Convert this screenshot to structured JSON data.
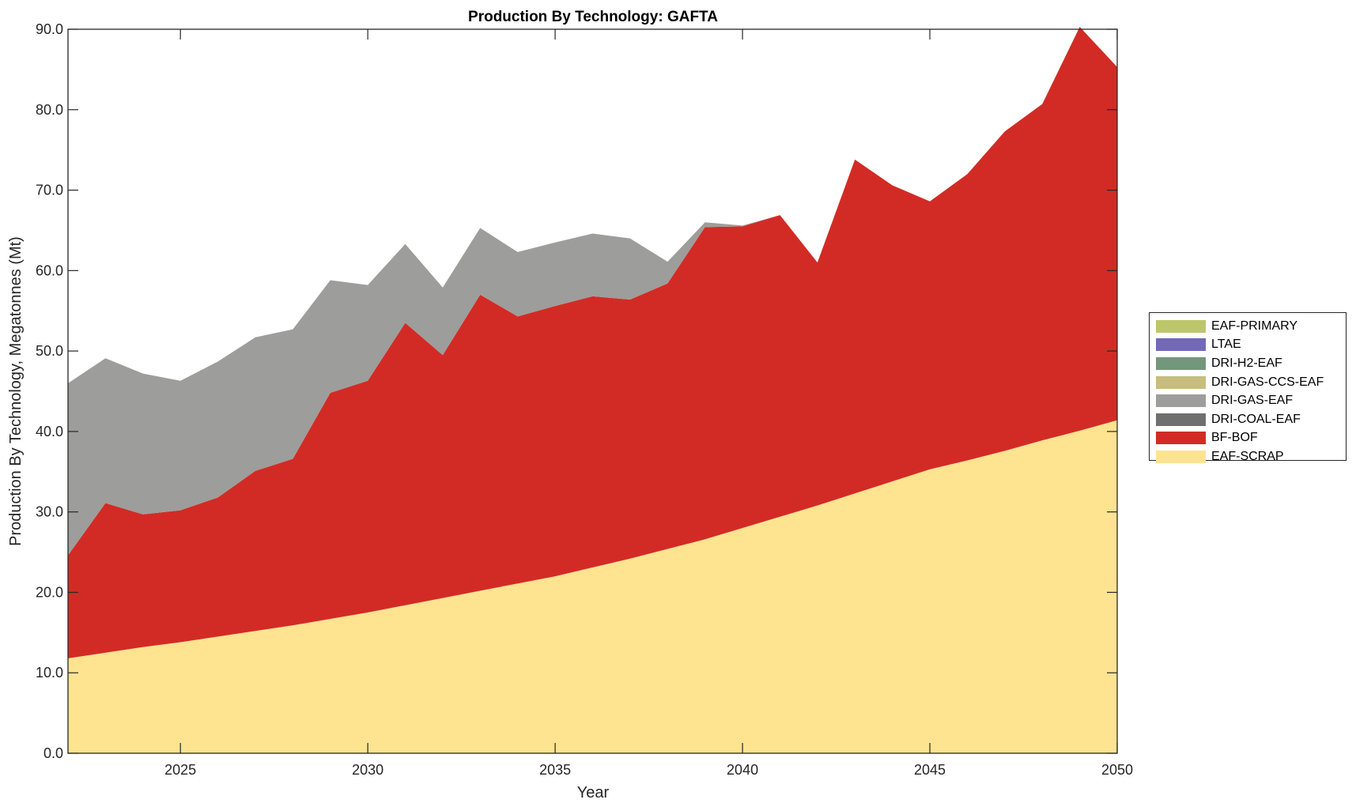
{
  "chart_data": {
    "type": "area",
    "stacked": true,
    "title": "Production By Technology: GAFTA",
    "xlabel": "Year",
    "ylabel": "Production By Technology, Megatonnes (Mt)",
    "xlim": [
      2022,
      2050
    ],
    "ylim": [
      0,
      90
    ],
    "xticks": [
      2025,
      2030,
      2035,
      2040,
      2045,
      2050
    ],
    "yticks": [
      0,
      10,
      20,
      30,
      40,
      50,
      60,
      70,
      80,
      90
    ],
    "ytick_labels": [
      "0.0",
      "10.0",
      "20.0",
      "30.0",
      "40.0",
      "50.0",
      "60.0",
      "70.0",
      "80.0",
      "90.0"
    ],
    "grid": false,
    "legend_position": "right",
    "x": [
      2022,
      2023,
      2024,
      2025,
      2026,
      2027,
      2028,
      2029,
      2030,
      2031,
      2032,
      2033,
      2034,
      2035,
      2036,
      2037,
      2038,
      2039,
      2040,
      2041,
      2042,
      2043,
      2044,
      2045,
      2046,
      2047,
      2048,
      2049,
      2050
    ],
    "series": [
      {
        "name": "EAF-SCRAP",
        "color": "#fee391",
        "values": [
          11.8,
          12.5,
          13.2,
          13.8,
          14.5,
          15.2,
          15.9,
          16.7,
          17.5,
          18.4,
          19.3,
          20.2,
          21.1,
          22.0,
          23.1,
          24.2,
          25.4,
          26.6,
          28.0,
          29.4,
          30.8,
          32.3,
          33.8,
          35.3,
          36.4,
          37.6,
          38.9,
          40.1,
          41.4
        ]
      },
      {
        "name": "BF-BOF",
        "color": "#d22b25",
        "values": [
          12.8,
          18.6,
          16.5,
          16.4,
          17.3,
          19.9,
          20.7,
          28.1,
          28.8,
          35.1,
          30.2,
          36.8,
          33.2,
          33.6,
          33.7,
          32.2,
          33.0,
          38.8,
          37.5,
          37.5,
          30.2,
          41.5,
          36.8,
          33.3,
          35.6,
          39.7,
          41.8,
          50.2,
          43.9
        ]
      },
      {
        "name": "DRI-COAL-EAF",
        "color": "#6f6f6f",
        "values": [
          0,
          0,
          0,
          0,
          0,
          0,
          0,
          0,
          0,
          0,
          0,
          0,
          0,
          0,
          0,
          0,
          0,
          0,
          0,
          0,
          0,
          0,
          0,
          0,
          0,
          0,
          0,
          0,
          0
        ]
      },
      {
        "name": "DRI-GAS-EAF",
        "color": "#9d9d9b",
        "values": [
          21.4,
          18.0,
          17.5,
          16.1,
          16.9,
          16.6,
          16.1,
          14.0,
          11.9,
          9.8,
          8.4,
          8.3,
          8.0,
          7.9,
          7.8,
          7.6,
          2.7,
          0.6,
          0.1,
          0,
          0,
          0,
          0,
          0,
          0,
          0,
          0,
          0,
          0
        ]
      },
      {
        "name": "DRI-GAS-CCS-EAF",
        "color": "#c6bd7e",
        "values": [
          0,
          0,
          0,
          0,
          0,
          0,
          0,
          0,
          0,
          0,
          0,
          0,
          0,
          0,
          0,
          0,
          0,
          0,
          0,
          0,
          0,
          0,
          0,
          0,
          0,
          0,
          0,
          0,
          0
        ]
      },
      {
        "name": "DRI-H2-EAF",
        "color": "#72977b",
        "values": [
          0,
          0,
          0,
          0,
          0,
          0,
          0,
          0,
          0,
          0,
          0,
          0,
          0,
          0,
          0,
          0,
          0,
          0,
          0,
          0,
          0,
          0,
          0,
          0,
          0,
          0,
          0,
          0,
          0
        ]
      },
      {
        "name": "LTAE",
        "color": "#7469b8",
        "values": [
          0,
          0,
          0,
          0,
          0,
          0,
          0,
          0,
          0,
          0,
          0,
          0,
          0,
          0,
          0,
          0,
          0,
          0,
          0,
          0,
          0,
          0,
          0,
          0,
          0,
          0,
          0,
          0,
          0
        ]
      },
      {
        "name": "EAF-PRIMARY",
        "color": "#bec66b",
        "values": [
          0,
          0,
          0,
          0,
          0,
          0,
          0,
          0,
          0,
          0,
          0,
          0,
          0,
          0,
          0,
          0,
          0,
          0,
          0,
          0,
          0,
          0,
          0,
          0,
          0,
          0,
          0,
          0,
          0
        ]
      }
    ],
    "legend_order": [
      "EAF-PRIMARY",
      "LTAE",
      "DRI-H2-EAF",
      "DRI-GAS-CCS-EAF",
      "DRI-GAS-EAF",
      "DRI-COAL-EAF",
      "BF-BOF",
      "EAF-SCRAP"
    ]
  }
}
